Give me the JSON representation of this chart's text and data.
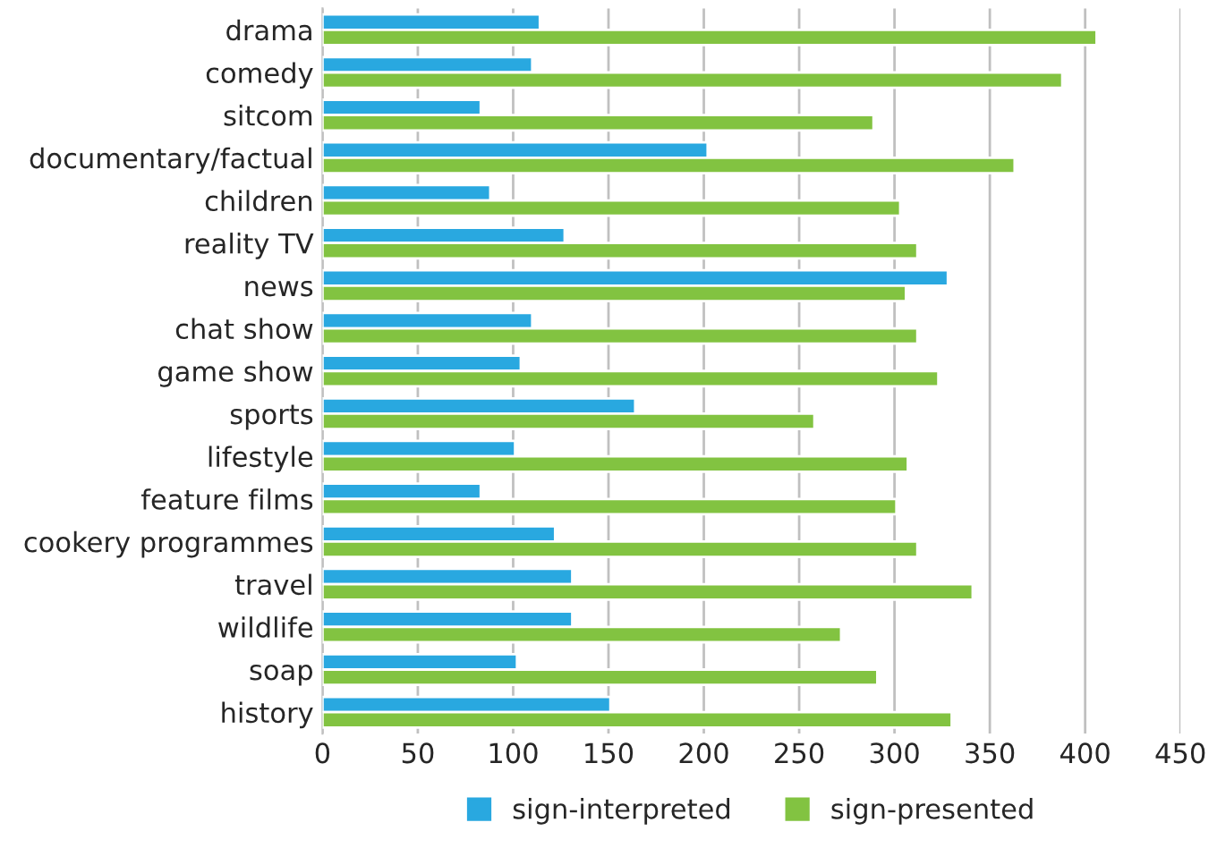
{
  "chart_data": {
    "type": "bar",
    "orientation": "horizontal",
    "categories": [
      "drama",
      "comedy",
      "sitcom",
      "documentary/factual",
      "children",
      "reality TV",
      "news",
      "chat show",
      "game show",
      "sports",
      "lifestyle",
      "feature films",
      "cookery programmes",
      "travel",
      "wildlife",
      "soap",
      "history"
    ],
    "series": [
      {
        "name": "sign-interpreted",
        "color": "#29a8e0",
        "values": [
          114,
          110,
          83,
          202,
          88,
          127,
          328,
          110,
          104,
          164,
          101,
          83,
          122,
          131,
          131,
          102,
          151
        ]
      },
      {
        "name": "sign-presented",
        "color": "#82c341",
        "values": [
          406,
          388,
          289,
          363,
          303,
          312,
          306,
          312,
          323,
          258,
          307,
          301,
          312,
          341,
          272,
          291,
          330
        ]
      }
    ],
    "xlim": [
      0,
      450
    ],
    "xticks": [
      0,
      50,
      100,
      150,
      200,
      250,
      300,
      350,
      400,
      450
    ],
    "grid": "x",
    "legend": "bottom"
  }
}
